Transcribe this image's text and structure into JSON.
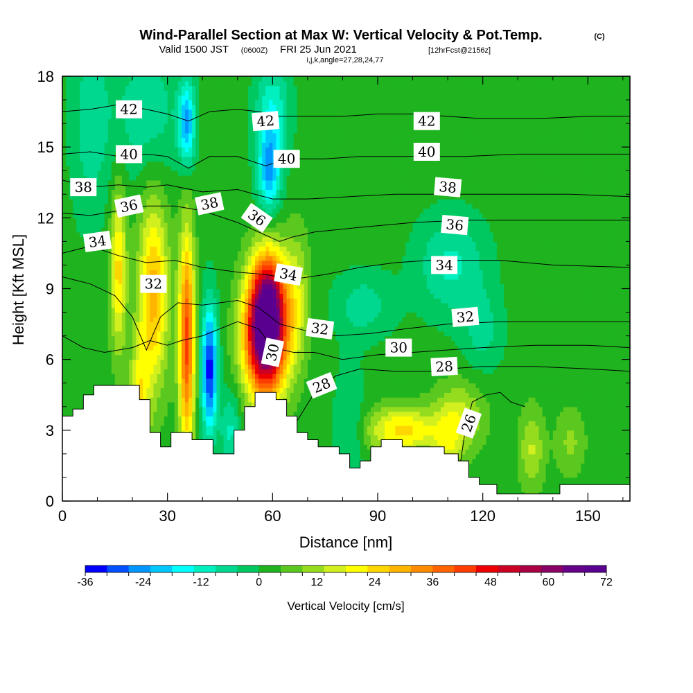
{
  "title": {
    "main": "Wind-Parallel Section at Max W: Vertical Velocity & Pot.Temp.",
    "copyright": "(C)",
    "valid_prefix": "Valid 1500 JST",
    "valid_utc": "(0600Z)",
    "valid_date": "FRI 25 Jun 2021",
    "forecast": "[12hrFcst@2156z]",
    "indices": "i,j,k,angle=27,28,24,77"
  },
  "chart_data": {
    "type": "heatmap",
    "xlabel": "Distance [nm]",
    "ylabel": "Height [Kft MSL]",
    "xlim": [
      0,
      162
    ],
    "ylim": [
      0,
      18
    ],
    "x_ticks": [
      0,
      30,
      60,
      90,
      120,
      150
    ],
    "y_ticks": [
      0,
      3,
      6,
      9,
      12,
      15,
      18
    ],
    "colorbar": {
      "label": "Vertical Velocity [cm/s]",
      "min": -36,
      "max": 72,
      "tick_values": [
        -36,
        -24,
        -12,
        0,
        12,
        24,
        36,
        48,
        60,
        72
      ],
      "tick_labels": [
        "-36",
        "-24",
        "-12",
        "0",
        "12",
        "24",
        "36",
        "48",
        "60",
        "72"
      ],
      "colors": [
        "#0000ff",
        "#0050ff",
        "#0096ff",
        "#00c8ff",
        "#00ffff",
        "#00f0c0",
        "#00d890",
        "#00c860",
        "#1fb41f",
        "#5ac81e",
        "#96dc1e",
        "#d2f01e",
        "#ffff00",
        "#ffd700",
        "#ffb400",
        "#ff8c00",
        "#ff6400",
        "#ff3c00",
        "#ee0000",
        "#cc0022",
        "#aa0044",
        "#880066",
        "#660088",
        "#5a0090"
      ]
    },
    "background_w": 2,
    "velocity_features": [
      {
        "x": 16,
        "y": 9.8,
        "sx": 1.6,
        "sy": 2.4,
        "w": 22
      },
      {
        "x": 26,
        "y": 8.8,
        "sx": 3.0,
        "sy": 2.8,
        "w": 27
      },
      {
        "x": 35.5,
        "y": 6.8,
        "sx": 1.6,
        "sy": 3.2,
        "w": 40
      },
      {
        "x": 58,
        "y": 7.0,
        "sx": 4.2,
        "sy": 1.8,
        "w": 70
      },
      {
        "x": 59,
        "y": 8.8,
        "sx": 3.5,
        "sy": 1.5,
        "w": 30
      },
      {
        "x": 67,
        "y": 8.6,
        "sx": 2.4,
        "sy": 2.0,
        "w": 12
      },
      {
        "x": 22,
        "y": 4.0,
        "sx": 2.0,
        "sy": 2.0,
        "w": 18
      },
      {
        "x": 97,
        "y": 3.0,
        "sx": 7.0,
        "sy": 0.7,
        "w": 22
      },
      {
        "x": 113,
        "y": 3.6,
        "sx": 5.0,
        "sy": 1.0,
        "w": 14
      },
      {
        "x": 110,
        "y": 2.2,
        "sx": 3.0,
        "sy": 0.8,
        "w": 10
      },
      {
        "x": 134,
        "y": 2.2,
        "sx": 2.5,
        "sy": 1.2,
        "w": 12
      },
      {
        "x": 145,
        "y": 2.5,
        "sx": 3.0,
        "sy": 1.0,
        "w": 8
      },
      {
        "x": 42,
        "y": 5.6,
        "sx": 1.6,
        "sy": 1.9,
        "w": -36
      },
      {
        "x": 35.5,
        "y": 16.0,
        "sx": 1.6,
        "sy": 1.2,
        "w": -25
      },
      {
        "x": 59,
        "y": 14.0,
        "sx": 2.3,
        "sy": 1.3,
        "w": -24
      },
      {
        "x": 60,
        "y": 16.6,
        "sx": 3.5,
        "sy": 1.5,
        "w": -14
      },
      {
        "x": 24,
        "y": 16.5,
        "sx": 7.0,
        "sy": 2.0,
        "w": -10
      },
      {
        "x": 8,
        "y": 16.0,
        "sx": 4.0,
        "sy": 3.0,
        "w": -9
      },
      {
        "x": 111,
        "y": 10.0,
        "sx": 7.0,
        "sy": 1.5,
        "w": -12
      },
      {
        "x": 86,
        "y": 8.3,
        "sx": 6.0,
        "sy": 1.0,
        "w": -9
      },
      {
        "x": 120,
        "y": 7.2,
        "sx": 4.0,
        "sy": 1.2,
        "w": -8
      },
      {
        "x": 48,
        "y": 3.0,
        "sx": 2.0,
        "sy": 1.2,
        "w": -12
      },
      {
        "x": 82,
        "y": 3.0,
        "sx": 3.0,
        "sy": 2.0,
        "w": -8
      }
    ],
    "terrain": [
      {
        "x": 0,
        "y": 3.6
      },
      {
        "x": 3,
        "y": 3.9
      },
      {
        "x": 6,
        "y": 4.5
      },
      {
        "x": 9,
        "y": 4.9
      },
      {
        "x": 22,
        "y": 4.3
      },
      {
        "x": 25,
        "y": 2.9
      },
      {
        "x": 28,
        "y": 2.3
      },
      {
        "x": 31,
        "y": 2.9
      },
      {
        "x": 37,
        "y": 2.6
      },
      {
        "x": 40,
        "y": 2.6
      },
      {
        "x": 43,
        "y": 2.0
      },
      {
        "x": 49,
        "y": 3.0
      },
      {
        "x": 52,
        "y": 4.0
      },
      {
        "x": 55,
        "y": 4.6
      },
      {
        "x": 61,
        "y": 4.3
      },
      {
        "x": 64,
        "y": 3.6
      },
      {
        "x": 67,
        "y": 2.9
      },
      {
        "x": 70,
        "y": 2.6
      },
      {
        "x": 73,
        "y": 2.3
      },
      {
        "x": 79,
        "y": 2.0
      },
      {
        "x": 82,
        "y": 1.4
      },
      {
        "x": 85,
        "y": 1.7
      },
      {
        "x": 88,
        "y": 2.3
      },
      {
        "x": 91,
        "y": 2.6
      },
      {
        "x": 97,
        "y": 2.3
      },
      {
        "x": 109,
        "y": 2.0
      },
      {
        "x": 113,
        "y": 1.7
      },
      {
        "x": 116,
        "y": 1.0
      },
      {
        "x": 119,
        "y": 0.7
      },
      {
        "x": 124,
        "y": 0.3
      },
      {
        "x": 142,
        "y": 0.7
      },
      {
        "x": 160,
        "y": 0.7
      }
    ],
    "theta_contours": [
      {
        "theta": 26,
        "label": "26",
        "label_x": 116,
        "label_y": 3.3,
        "label_angle": -70,
        "points": [
          [
            113,
            1.0
          ],
          [
            115,
            3.0
          ],
          [
            117,
            4.2
          ],
          [
            121,
            4.5
          ],
          [
            125,
            4.6
          ],
          [
            128,
            4.2
          ],
          [
            132,
            4.0
          ]
        ]
      },
      {
        "theta": 28,
        "label": "28",
        "label_x": 74,
        "label_y": 4.9,
        "label_angle": -22,
        "points": [
          [
            62,
            2.0
          ],
          [
            67,
            3.4
          ],
          [
            72,
            4.6
          ],
          [
            78,
            5.3
          ],
          [
            85,
            5.6
          ],
          [
            95,
            5.5
          ],
          [
            105,
            5.5
          ],
          [
            110,
            5.6
          ],
          [
            120,
            5.7
          ],
          [
            135,
            5.7
          ],
          [
            150,
            5.6
          ],
          [
            162,
            5.5
          ]
        ]
      },
      {
        "theta": 30,
        "label": "30",
        "label_x": 60,
        "label_y": 6.3,
        "label_angle": -78,
        "points": [
          [
            0,
            7.0
          ],
          [
            6,
            6.5
          ],
          [
            12,
            6.3
          ],
          [
            20,
            6.5
          ],
          [
            25,
            6.8
          ],
          [
            30,
            6.6
          ],
          [
            34,
            6.8
          ],
          [
            40,
            7.0
          ],
          [
            50,
            7.6
          ],
          [
            56,
            7.3
          ],
          [
            60,
            6.5
          ],
          [
            66,
            6.3
          ],
          [
            72,
            6.3
          ],
          [
            80,
            6.0
          ],
          [
            90,
            6.2
          ],
          [
            100,
            6.3
          ],
          [
            110,
            6.4
          ],
          [
            120,
            6.5
          ],
          [
            135,
            6.6
          ],
          [
            150,
            6.6
          ],
          [
            162,
            6.5
          ]
        ]
      },
      {
        "theta": 32,
        "label": "32",
        "label_x": 26,
        "label_y": 9.2,
        "label_angle": 0,
        "points": [
          [
            0,
            9.5
          ],
          [
            8,
            9.2
          ],
          [
            15,
            8.7
          ],
          [
            20,
            7.8
          ],
          [
            24,
            6.4
          ],
          [
            28,
            7.8
          ],
          [
            33,
            8.4
          ],
          [
            40,
            8.3
          ],
          [
            50,
            8.5
          ],
          [
            56,
            8.2
          ],
          [
            62,
            7.5
          ],
          [
            70,
            7.2
          ],
          [
            78,
            7.0
          ],
          [
            88,
            7.1
          ],
          [
            98,
            7.3
          ],
          [
            110,
            7.5
          ],
          [
            125,
            7.6
          ],
          [
            140,
            7.6
          ],
          [
            155,
            7.6
          ],
          [
            162,
            7.6
          ]
        ]
      },
      {
        "theta": 34,
        "label": "34",
        "label_x": 10,
        "label_y": 11.0,
        "label_angle": -8,
        "points": [
          [
            0,
            10.5
          ],
          [
            8,
            10.8
          ],
          [
            16,
            10.4
          ],
          [
            24,
            10.1
          ],
          [
            32,
            10.2
          ],
          [
            40,
            9.9
          ],
          [
            50,
            9.7
          ],
          [
            58,
            9.6
          ],
          [
            66,
            9.4
          ],
          [
            75,
            9.6
          ],
          [
            85,
            9.9
          ],
          [
            95,
            10.1
          ],
          [
            105,
            10.2
          ],
          [
            115,
            10.2
          ],
          [
            125,
            10.2
          ],
          [
            140,
            10.0
          ],
          [
            162,
            9.9
          ]
        ]
      },
      {
        "theta": 36,
        "label": "36",
        "label_x": 19,
        "label_y": 12.5,
        "label_angle": -12,
        "points": [
          [
            0,
            12.2
          ],
          [
            8,
            12.1
          ],
          [
            16,
            12.3
          ],
          [
            24,
            12.5
          ],
          [
            32,
            12.5
          ],
          [
            40,
            12.3
          ],
          [
            50,
            11.8
          ],
          [
            56,
            11.4
          ],
          [
            62,
            11.0
          ],
          [
            66,
            11.2
          ],
          [
            72,
            11.4
          ],
          [
            85,
            11.6
          ],
          [
            100,
            11.8
          ],
          [
            115,
            11.9
          ],
          [
            130,
            11.9
          ],
          [
            145,
            11.9
          ],
          [
            162,
            11.9
          ]
        ]
      },
      {
        "theta": 38,
        "label": "38",
        "label_x": 6,
        "label_y": 13.3,
        "label_angle": 0,
        "points": [
          [
            0,
            13.6
          ],
          [
            8,
            13.3
          ],
          [
            16,
            13.4
          ],
          [
            24,
            13.3
          ],
          [
            30,
            13.4
          ],
          [
            40,
            13.1
          ],
          [
            50,
            13.2
          ],
          [
            60,
            12.8
          ],
          [
            70,
            12.8
          ],
          [
            82,
            12.9
          ],
          [
            95,
            13.0
          ],
          [
            108,
            13.0
          ],
          [
            125,
            13.0
          ],
          [
            145,
            13.0
          ],
          [
            162,
            12.9
          ]
        ]
      },
      {
        "theta": 40,
        "label": "40",
        "label_x": 19,
        "label_y": 14.7,
        "label_angle": 0,
        "points": [
          [
            0,
            14.7
          ],
          [
            8,
            14.8
          ],
          [
            16,
            14.6
          ],
          [
            24,
            14.7
          ],
          [
            30,
            14.6
          ],
          [
            36,
            14.1
          ],
          [
            42,
            14.6
          ],
          [
            50,
            14.6
          ],
          [
            58,
            14.2
          ],
          [
            64,
            14.5
          ],
          [
            75,
            14.5
          ],
          [
            85,
            14.6
          ],
          [
            100,
            14.6
          ],
          [
            115,
            14.6
          ],
          [
            130,
            14.7
          ],
          [
            145,
            14.7
          ],
          [
            162,
            14.7
          ]
        ]
      },
      {
        "theta": 42,
        "label": "42",
        "label_x": 19,
        "label_y": 16.6,
        "label_angle": 0,
        "points": [
          [
            0,
            16.5
          ],
          [
            8,
            16.6
          ],
          [
            16,
            16.8
          ],
          [
            24,
            16.6
          ],
          [
            30,
            16.4
          ],
          [
            36,
            16.1
          ],
          [
            42,
            16.5
          ],
          [
            50,
            16.6
          ],
          [
            56,
            16.5
          ],
          [
            62,
            16.3
          ],
          [
            70,
            16.3
          ],
          [
            80,
            16.3
          ],
          [
            90,
            16.4
          ],
          [
            100,
            16.4
          ],
          [
            110,
            16.3
          ],
          [
            120,
            16.2
          ],
          [
            135,
            16.2
          ],
          [
            150,
            16.3
          ],
          [
            162,
            16.3
          ]
        ]
      }
    ],
    "extra_contour_labels": [
      {
        "label": "42",
        "x": 58,
        "y": 16.1,
        "angle": -5
      },
      {
        "label": "42",
        "x": 104,
        "y": 16.1,
        "angle": 0
      },
      {
        "label": "40",
        "x": 64,
        "y": 14.5,
        "angle": 0
      },
      {
        "label": "40",
        "x": 104,
        "y": 14.8,
        "angle": 0
      },
      {
        "label": "38",
        "x": 42,
        "y": 12.6,
        "angle": -12
      },
      {
        "label": "38",
        "x": 110,
        "y": 13.3,
        "angle": 5
      },
      {
        "label": "36",
        "x": 55.5,
        "y": 12.0,
        "angle": 35
      },
      {
        "label": "36",
        "x": 112,
        "y": 11.7,
        "angle": 5
      },
      {
        "label": "34",
        "x": 64.5,
        "y": 9.6,
        "angle": 10
      },
      {
        "label": "34",
        "x": 109,
        "y": 10.0,
        "angle": 0
      },
      {
        "label": "32",
        "x": 73.5,
        "y": 7.3,
        "angle": 8
      },
      {
        "label": "32",
        "x": 115,
        "y": 7.8,
        "angle": -5
      },
      {
        "label": "30",
        "x": 96,
        "y": 6.5,
        "angle": 0
      },
      {
        "label": "28",
        "x": 109,
        "y": 5.7,
        "angle": -3
      }
    ]
  }
}
